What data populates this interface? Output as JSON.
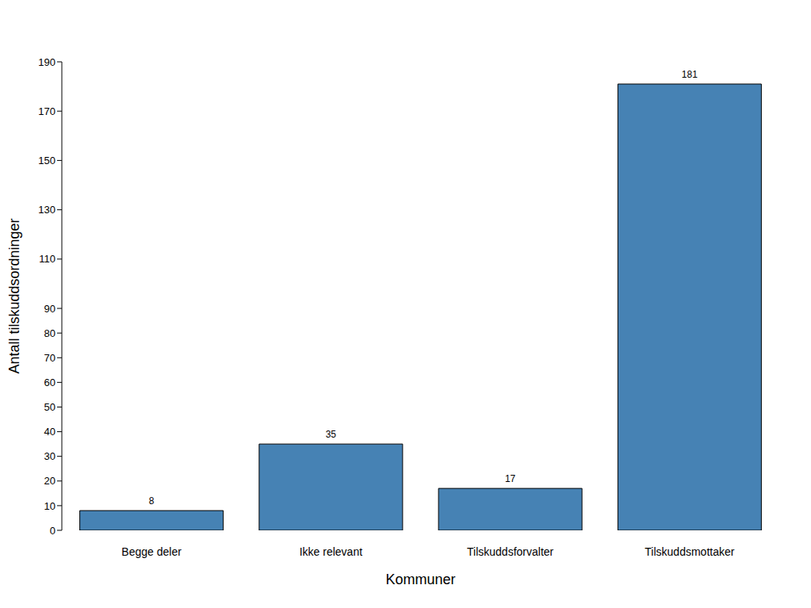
{
  "chart_data": {
    "type": "bar",
    "x_label": "Kommuner",
    "y_label": "Antall tilskuddsordninger",
    "categories": [
      "Begge deler",
      "Ikke relevant",
      "Tilskuddsforvalter",
      "Tilskuddsmottaker"
    ],
    "values": [
      8,
      35,
      17,
      181
    ],
    "color": "#4682b4",
    "ylim": [
      0,
      190
    ],
    "yticks": [
      0,
      10,
      20,
      30,
      40,
      50,
      60,
      70,
      80,
      90,
      110,
      130,
      150,
      170,
      190
    ],
    "grid": false,
    "data_labels": true
  }
}
